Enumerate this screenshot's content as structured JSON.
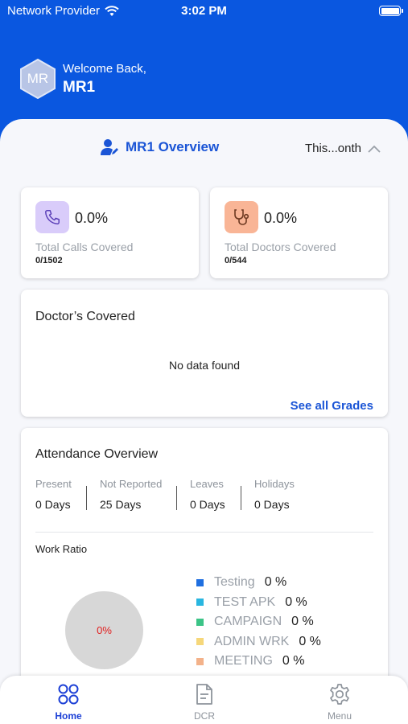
{
  "status_bar": {
    "carrier": "Network Provider",
    "time": "3:02 PM"
  },
  "header": {
    "avatar_initials": "MR",
    "welcome": "Welcome Back,",
    "user_name": "MR1"
  },
  "overview": {
    "title": "MR1 Overview",
    "period": "This...onth"
  },
  "stats": [
    {
      "value": "0.0%",
      "label": "Total Calls Covered",
      "count": "0/1502",
      "icon": "phone-icon",
      "icon_bg": "#d9ccfa",
      "icon_color": "#5b3fb8"
    },
    {
      "value": "0.0%",
      "label": "Total Doctors Covered",
      "count": "0/544",
      "icon": "stethoscope-icon",
      "icon_bg": "#f9b596",
      "icon_color": "#6e3a22"
    }
  ],
  "doctors_covered": {
    "title": "Doctor’s Covered",
    "empty_text": "No data found",
    "link": "See all Grades"
  },
  "attendance": {
    "title": "Attendance Overview",
    "columns": [
      {
        "label": "Present",
        "value": "0 Days"
      },
      {
        "label": "Not Reported",
        "value": "25 Days"
      },
      {
        "label": "Leaves",
        "value": "0 Days"
      },
      {
        "label": "Holidays",
        "value": "0 Days"
      }
    ],
    "work_ratio_title": "Work Ratio",
    "pie_label": "0%",
    "legend": [
      {
        "name": "Testing",
        "pct": "0 %",
        "color": "#1f6fe0"
      },
      {
        "name": "TEST APK",
        "pct": "0 %",
        "color": "#29b6e0"
      },
      {
        "name": "CAMPAIGN",
        "pct": "0 %",
        "color": "#3cc487"
      },
      {
        "name": "ADMIN WRK",
        "pct": "0 %",
        "color": "#f6d77a"
      },
      {
        "name": "MEETING",
        "pct": "0 %",
        "color": "#f3b28a"
      }
    ]
  },
  "nav": {
    "items": [
      {
        "label": "Home",
        "icon": "grid-icon",
        "active": true
      },
      {
        "label": "DCR",
        "icon": "document-icon",
        "active": false
      },
      {
        "label": "Menu",
        "icon": "gear-icon",
        "active": false
      }
    ],
    "active_color": "#1b3fd6",
    "inactive_color": "#8d939b"
  }
}
